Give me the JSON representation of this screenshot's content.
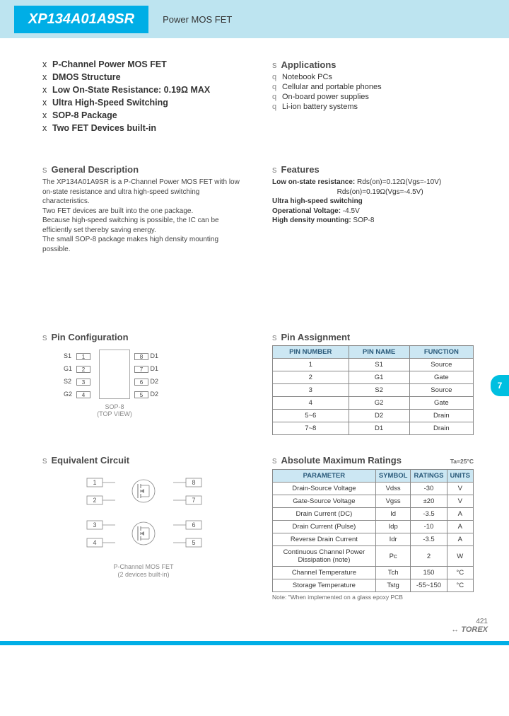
{
  "header": {
    "part_number": "XP134A01A9SR",
    "category": "Power MOS FET"
  },
  "key_features": [
    "P-Channel Power MOS FET",
    "DMOS Structure",
    "Low On-State Resistance: 0.19Ω MAX",
    "Ultra High-Speed Switching",
    "SOP-8 Package",
    "Two FET Devices built-in"
  ],
  "applications": {
    "title": "Applications",
    "items": [
      "Notebook PCs",
      "Cellular and portable phones",
      "On-board power supplies",
      "Li-ion battery systems"
    ]
  },
  "general_description": {
    "title": "General Description",
    "text": "The XP134A01A9SR is a P-Channel Power MOS FET with low on-state resistance and ultra high-speed switching characteristics.\nTwo FET devices are built into the one package.\nBecause high-speed switching is possible, the IC can be efficiently set thereby saving energy.\nThe small SOP-8 package makes high density mounting possible."
  },
  "features": {
    "title": "Features",
    "lines": [
      "<b>Low on-state resistance:</b> Rds(on)=0.12Ω(Vgs=-10V)",
      "&nbsp;&nbsp;&nbsp;&nbsp;&nbsp;&nbsp;&nbsp;&nbsp;&nbsp;&nbsp;&nbsp;&nbsp;&nbsp;&nbsp;&nbsp;&nbsp;&nbsp;&nbsp;&nbsp;&nbsp;&nbsp;&nbsp;&nbsp;&nbsp;&nbsp;&nbsp;&nbsp;&nbsp;&nbsp;&nbsp;&nbsp;&nbsp;&nbsp;Rds(on)=0.19Ω(Vgs=-4.5V)",
      "<b>Ultra high-speed switching</b>",
      "<b>Operational Voltage:</b> -4.5V",
      "<b>High density mounting:</b> SOP-8"
    ]
  },
  "pin_config": {
    "title": "Pin Configuration",
    "left_pins": [
      {
        "label": "S1",
        "num": "1"
      },
      {
        "label": "G1",
        "num": "2"
      },
      {
        "label": "S2",
        "num": "3"
      },
      {
        "label": "G2",
        "num": "4"
      }
    ],
    "right_pins": [
      {
        "num": "8",
        "label": "D1"
      },
      {
        "num": "7",
        "label": "D1"
      },
      {
        "num": "6",
        "label": "D2"
      },
      {
        "num": "5",
        "label": "D2"
      }
    ],
    "chip_label": "SOP-8\n(TOP VIEW)"
  },
  "pin_assignment": {
    "title": "Pin Assignment",
    "columns": [
      "PIN NUMBER",
      "PIN NAME",
      "FUNCTION"
    ],
    "rows": [
      [
        "1",
        "S1",
        "Source"
      ],
      [
        "2",
        "G1",
        "Gate"
      ],
      [
        "3",
        "S2",
        "Source"
      ],
      [
        "4",
        "G2",
        "Gate"
      ],
      [
        "5~6",
        "D2",
        "Drain"
      ],
      [
        "7~8",
        "D1",
        "Drain"
      ]
    ]
  },
  "equiv_circuit": {
    "title": "Equivalent Circuit",
    "caption": "P-Channel MOS FET\n(2 devices built-in)",
    "pins": [
      "1",
      "2",
      "3",
      "4",
      "5",
      "6",
      "7",
      "8"
    ]
  },
  "abs_max": {
    "title": "Absolute Maximum Ratings",
    "condition": "Ta=25°C",
    "columns": [
      "PARAMETER",
      "SYMBOL",
      "RATINGS",
      "UNITS"
    ],
    "rows": [
      [
        "Drain-Source Voltage",
        "Vdss",
        "-30",
        "V"
      ],
      [
        "Gate-Source Voltage",
        "Vgss",
        "±20",
        "V"
      ],
      [
        "Drain Current (DC)",
        "Id",
        "-3.5",
        "A"
      ],
      [
        "Drain Current (Pulse)",
        "Idp",
        "-10",
        "A"
      ],
      [
        "Reverse Drain Current",
        "Idr",
        "-3.5",
        "A"
      ],
      [
        "Continuous Channel Power Dissipation (note)",
        "Pc",
        "2",
        "W"
      ],
      [
        "Channel Temperature",
        "Tch",
        "150",
        "°C"
      ],
      [
        "Storage Temperature",
        "Tstg",
        "-55~150",
        "°C"
      ]
    ],
    "note": "Note: \"When implemented on a glass epoxy PCB"
  },
  "side_tab": "7",
  "footer": {
    "page": "421",
    "brand": "TOREX"
  },
  "colors": {
    "header_band": "#bde4f0",
    "title_chip": "#00aee6",
    "table_header": "#cce7f3",
    "side_tab": "#00bfe0"
  }
}
